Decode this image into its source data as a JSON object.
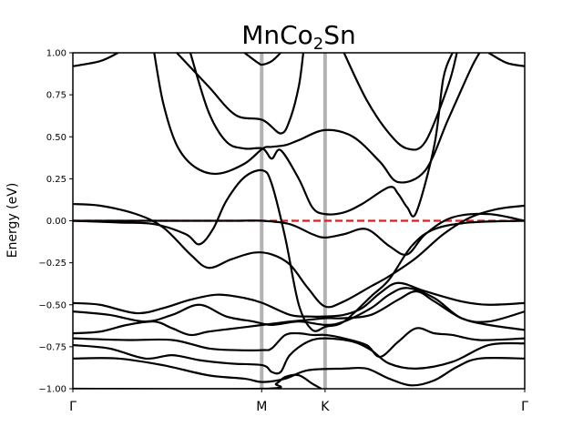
{
  "chart_data": {
    "type": "line",
    "title": {
      "prefix": "MnCo",
      "subscript": "2",
      "suffix": "Sn"
    },
    "ylabel": "Energy (eV)",
    "ylim": [
      -1.0,
      1.0
    ],
    "yticks": [
      "1.00",
      "0.75",
      "0.50",
      "0.25",
      "0.00",
      "−0.25",
      "−0.50",
      "−0.75",
      "−1.00"
    ],
    "ytick_values": [
      1.0,
      0.75,
      0.5,
      0.25,
      0.0,
      -0.25,
      -0.5,
      -0.75,
      -1.0
    ],
    "xlim": [
      0,
      1
    ],
    "kpoints": [
      {
        "label": "Γ",
        "x": 0.0
      },
      {
        "label": "M",
        "x": 0.4179
      },
      {
        "label": "K",
        "x": 0.5582
      },
      {
        "label": "Γ",
        "x": 1.0
      }
    ],
    "fermi_level": 0.0,
    "colors": {
      "bands": "#000000",
      "fermi": "#e41a1c",
      "kline": "#b3b3b3"
    },
    "series": [
      {
        "points": [
          [
            0.0,
            -1.0
          ],
          [
            0.42,
            -1.0
          ],
          [
            0.45,
            -0.97
          ],
          [
            0.47,
            -0.93
          ],
          [
            0.5,
            -0.92
          ],
          [
            0.53,
            -0.97
          ],
          [
            0.55,
            -1.0
          ]
        ]
      },
      {
        "points": [
          [
            0.0,
            -0.82
          ],
          [
            0.1,
            -0.82
          ],
          [
            0.2,
            -0.86
          ],
          [
            0.3,
            -0.92
          ],
          [
            0.38,
            -0.94
          ],
          [
            0.42,
            -0.96
          ],
          [
            0.47,
            -0.94
          ],
          [
            0.52,
            -0.89
          ],
          [
            0.6,
            -0.88
          ],
          [
            0.65,
            -0.88
          ],
          [
            0.7,
            -0.94
          ],
          [
            0.75,
            -0.98
          ],
          [
            0.8,
            -0.95
          ],
          [
            0.85,
            -0.87
          ],
          [
            0.9,
            -0.82
          ],
          [
            1.0,
            -0.82
          ]
        ]
      },
      {
        "points": [
          [
            0.0,
            -0.74
          ],
          [
            0.08,
            -0.76
          ],
          [
            0.16,
            -0.82
          ],
          [
            0.22,
            -0.8
          ],
          [
            0.28,
            -0.83
          ],
          [
            0.35,
            -0.85
          ],
          [
            0.42,
            -0.86
          ],
          [
            0.44,
            -0.9
          ],
          [
            0.46,
            -0.9
          ],
          [
            0.48,
            -0.8
          ],
          [
            0.52,
            -0.72
          ],
          [
            0.56,
            -0.7
          ],
          [
            0.62,
            -0.72
          ],
          [
            0.66,
            -0.77
          ],
          [
            0.7,
            -0.85
          ],
          [
            0.76,
            -0.88
          ],
          [
            0.84,
            -0.84
          ],
          [
            0.92,
            -0.74
          ],
          [
            1.0,
            -0.73
          ]
        ]
      },
      {
        "points": [
          [
            0.0,
            -0.7
          ],
          [
            0.12,
            -0.71
          ],
          [
            0.22,
            -0.71
          ],
          [
            0.3,
            -0.76
          ],
          [
            0.36,
            -0.77
          ],
          [
            0.42,
            -0.77
          ],
          [
            0.44,
            -0.76
          ],
          [
            0.47,
            -0.68
          ],
          [
            0.5,
            -0.67
          ],
          [
            0.53,
            -0.68
          ],
          [
            0.56,
            -0.68
          ],
          [
            0.6,
            -0.7
          ],
          [
            0.65,
            -0.74
          ],
          [
            0.68,
            -0.81
          ],
          [
            0.72,
            -0.72
          ],
          [
            0.76,
            -0.64
          ],
          [
            0.8,
            -0.67
          ],
          [
            0.84,
            -0.68
          ],
          [
            0.9,
            -0.71
          ],
          [
            1.0,
            -0.7
          ]
        ]
      },
      {
        "points": [
          [
            0.0,
            -0.67
          ],
          [
            0.06,
            -0.66
          ],
          [
            0.12,
            -0.62
          ],
          [
            0.18,
            -0.6
          ],
          [
            0.22,
            -0.64
          ],
          [
            0.26,
            -0.68
          ],
          [
            0.3,
            -0.66
          ],
          [
            0.36,
            -0.64
          ],
          [
            0.42,
            -0.62
          ],
          [
            0.45,
            -0.61
          ],
          [
            0.48,
            -0.6
          ],
          [
            0.52,
            -0.59
          ],
          [
            0.56,
            -0.58
          ],
          [
            0.6,
            -0.58
          ],
          [
            0.66,
            -0.56
          ],
          [
            0.72,
            -0.47
          ],
          [
            0.76,
            -0.42
          ],
          [
            0.8,
            -0.48
          ],
          [
            0.86,
            -0.58
          ],
          [
            0.92,
            -0.62
          ],
          [
            1.0,
            -0.65
          ]
        ]
      },
      {
        "points": [
          [
            0.0,
            -0.54
          ],
          [
            0.08,
            -0.56
          ],
          [
            0.16,
            -0.6
          ],
          [
            0.22,
            -0.56
          ],
          [
            0.28,
            -0.5
          ],
          [
            0.34,
            -0.57
          ],
          [
            0.4,
            -0.6
          ],
          [
            0.44,
            -0.62
          ],
          [
            0.5,
            -0.6
          ],
          [
            0.56,
            -0.62
          ],
          [
            0.6,
            -0.6
          ],
          [
            0.66,
            -0.52
          ],
          [
            0.7,
            -0.44
          ],
          [
            0.74,
            -0.4
          ],
          [
            0.8,
            -0.46
          ],
          [
            0.86,
            -0.58
          ],
          [
            0.92,
            -0.6
          ],
          [
            1.0,
            -0.54
          ]
        ]
      },
      {
        "points": [
          [
            0.0,
            -0.49
          ],
          [
            0.06,
            -0.5
          ],
          [
            0.14,
            -0.55
          ],
          [
            0.2,
            -0.52
          ],
          [
            0.26,
            -0.47
          ],
          [
            0.32,
            -0.44
          ],
          [
            0.38,
            -0.46
          ],
          [
            0.42,
            -0.49
          ],
          [
            0.48,
            -0.56
          ],
          [
            0.52,
            -0.57
          ],
          [
            0.56,
            -0.57
          ],
          [
            0.6,
            -0.56
          ],
          [
            0.64,
            -0.52
          ],
          [
            0.68,
            -0.43
          ],
          [
            0.72,
            -0.37
          ],
          [
            0.78,
            -0.42
          ],
          [
            0.86,
            -0.48
          ],
          [
            0.92,
            -0.5
          ],
          [
            1.0,
            -0.49
          ]
        ]
      },
      {
        "points": [
          [
            0.0,
            0.1
          ],
          [
            0.06,
            0.09
          ],
          [
            0.14,
            0.04
          ],
          [
            0.2,
            -0.04
          ],
          [
            0.26,
            -0.2
          ],
          [
            0.3,
            -0.28
          ],
          [
            0.35,
            -0.23
          ],
          [
            0.4,
            -0.19
          ],
          [
            0.44,
            -0.2
          ],
          [
            0.48,
            -0.26
          ],
          [
            0.52,
            -0.4
          ],
          [
            0.5582,
            -0.51
          ],
          [
            0.6,
            -0.48
          ],
          [
            0.66,
            -0.39
          ],
          [
            0.7,
            -0.33
          ],
          [
            0.76,
            -0.22
          ],
          [
            0.82,
            -0.08
          ],
          [
            0.88,
            0.02
          ],
          [
            0.94,
            0.07
          ],
          [
            1.0,
            0.09
          ]
        ]
      },
      {
        "points": [
          [
            0.0,
            0.0
          ],
          [
            0.1,
            -0.01
          ],
          [
            0.18,
            -0.02
          ],
          [
            0.25,
            -0.08
          ],
          [
            0.28,
            -0.14
          ],
          [
            0.31,
            -0.05
          ],
          [
            0.34,
            0.12
          ],
          [
            0.38,
            0.26
          ],
          [
            0.42,
            0.3
          ],
          [
            0.44,
            0.22
          ],
          [
            0.47,
            -0.1
          ],
          [
            0.5,
            -0.5
          ],
          [
            0.53,
            -0.65
          ],
          [
            0.56,
            -0.63
          ],
          [
            0.6,
            -0.6
          ],
          [
            0.66,
            -0.45
          ],
          [
            0.7,
            -0.35
          ],
          [
            0.75,
            -0.15
          ],
          [
            0.8,
            -0.05
          ],
          [
            0.88,
            -0.01
          ],
          [
            1.0,
            0.0
          ]
        ]
      },
      {
        "points": [
          [
            0.0,
            0.0
          ],
          [
            0.12,
            0.0
          ],
          [
            0.25,
            0.0
          ],
          [
            0.35,
            0.0
          ],
          [
            0.42,
            0.0
          ],
          [
            0.48,
            -0.02
          ],
          [
            0.53,
            -0.08
          ],
          [
            0.5582,
            -0.1
          ],
          [
            0.6,
            -0.08
          ],
          [
            0.65,
            -0.05
          ],
          [
            0.7,
            -0.15
          ],
          [
            0.74,
            -0.2
          ],
          [
            0.78,
            -0.08
          ],
          [
            0.84,
            0.02
          ],
          [
            0.92,
            0.04
          ],
          [
            1.0,
            0.0
          ]
        ]
      },
      {
        "points": [
          [
            0.26,
            1.0
          ],
          [
            0.3,
            0.65
          ],
          [
            0.34,
            0.47
          ],
          [
            0.38,
            0.43
          ],
          [
            0.42,
            0.43
          ],
          [
            0.44,
            0.37
          ],
          [
            0.46,
            0.42
          ],
          [
            0.5,
            0.25
          ],
          [
            0.53,
            0.08
          ],
          [
            0.5582,
            0.04
          ],
          [
            0.6,
            0.05
          ],
          [
            0.64,
            0.1
          ],
          [
            0.7,
            0.2
          ],
          [
            0.72,
            0.16
          ],
          [
            0.74,
            0.08
          ],
          [
            0.76,
            0.05
          ],
          [
            0.8,
            0.45
          ],
          [
            0.82,
            0.85
          ],
          [
            0.84,
            1.0
          ]
        ]
      },
      {
        "points": [
          [
            0.18,
            1.0
          ],
          [
            0.2,
            0.7
          ],
          [
            0.23,
            0.45
          ],
          [
            0.27,
            0.32
          ],
          [
            0.32,
            0.28
          ],
          [
            0.38,
            0.34
          ],
          [
            0.42,
            0.43
          ],
          [
            0.44,
            0.44
          ],
          [
            0.47,
            0.45
          ],
          [
            0.5,
            0.48
          ],
          [
            0.5582,
            0.54
          ],
          [
            0.62,
            0.5
          ],
          [
            0.68,
            0.35
          ],
          [
            0.72,
            0.23
          ],
          [
            0.78,
            0.3
          ],
          [
            0.83,
            0.6
          ],
          [
            0.88,
            0.9
          ],
          [
            0.9,
            1.0
          ]
        ]
      },
      {
        "points": [
          [
            0.0,
            0.92
          ],
          [
            0.06,
            0.95
          ],
          [
            0.1,
            1.0
          ]
        ]
      },
      {
        "points": [
          [
            0.23,
            1.0
          ],
          [
            0.3,
            0.8
          ],
          [
            0.36,
            0.63
          ],
          [
            0.42,
            0.6
          ],
          [
            0.46,
            0.52
          ],
          [
            0.48,
            0.6
          ],
          [
            0.5,
            0.8
          ],
          [
            0.51,
            1.0
          ]
        ]
      },
      {
        "points": [
          [
            0.38,
            1.0
          ],
          [
            0.41,
            0.94
          ],
          [
            0.42,
            0.93
          ],
          [
            0.44,
            0.95
          ],
          [
            0.46,
            1.0
          ]
        ]
      },
      {
        "points": [
          [
            0.6,
            1.0
          ],
          [
            0.65,
            0.72
          ],
          [
            0.7,
            0.52
          ],
          [
            0.74,
            0.43
          ],
          [
            0.78,
            0.47
          ],
          [
            0.83,
            0.8
          ],
          [
            0.85,
            1.0
          ]
        ]
      },
      {
        "points": [
          [
            0.92,
            1.0
          ],
          [
            0.96,
            0.94
          ],
          [
            1.0,
            0.92
          ]
        ]
      }
    ]
  }
}
